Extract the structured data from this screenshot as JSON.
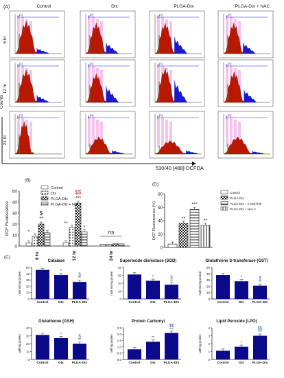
{
  "panel_labels": {
    "a": "(A)",
    "b": "(B)",
    "c": "(C)",
    "d": "(D)"
  },
  "flow": {
    "columns": [
      "Control",
      "Dtx",
      "PLGA-Dtx",
      "PLGA-Dtx + NAC"
    ],
    "rows": [
      "6 hr",
      "12 hr",
      "24 hr"
    ],
    "gate_label": "P2",
    "y_axis": "Counts",
    "x_axis": "530/40 [488]-DCFDA"
  },
  "chart_data": [
    {
      "type": "bar",
      "panel": "(B)",
      "categories": [
        "6 hr",
        "12 hr",
        "24 hr"
      ],
      "ylabel": "DCF Fluorescence",
      "ylim": [
        0,
        50
      ],
      "yticks": [
        "0",
        "10",
        "20",
        "30",
        "40",
        "50"
      ],
      "series": [
        {
          "name": "Control",
          "values": [
            3,
            3,
            1.5
          ]
        },
        {
          "name": "Dtx",
          "values": [
            9,
            17,
            1.5
          ]
        },
        {
          "name": "PLGA-Dtx",
          "values": [
            20,
            39,
            2
          ]
        },
        {
          "name": "PLGA-Dtx + NAC",
          "values": [
            12,
            13,
            2
          ]
        }
      ],
      "annotations": [
        "*",
        "**",
        "$",
        "**",
        "***",
        "$$",
        "*",
        "ns"
      ]
    },
    {
      "type": "bar",
      "panel": "(D)",
      "ylabel": "DCF Fluorescence (%)",
      "ylim": [
        0,
        80
      ],
      "yticks": [
        "0",
        "20",
        "40",
        "60",
        "80"
      ],
      "series": [
        {
          "name": "Control",
          "values": [
            5
          ]
        },
        {
          "name": "PLGA-Dtx",
          "values": [
            36
          ]
        },
        {
          "name": "PLGA-Dtx + z-vad-fmk",
          "values": [
            57
          ]
        },
        {
          "name": "PLGA-Dtx + Nec-1",
          "values": [
            33
          ]
        }
      ],
      "annotations": [
        "**",
        "***",
        "**"
      ]
    },
    {
      "type": "bar",
      "panel": "(C)",
      "title": "Catalase",
      "ylabel": "nM/min/mg protein",
      "categories": [
        "Control",
        "Dtx",
        "PLGA-Dtx"
      ],
      "values": [
        46,
        38,
        27
      ],
      "ylim": [
        0,
        50
      ],
      "yticks": [
        "0",
        "10",
        "20",
        "30",
        "40",
        "50"
      ],
      "annotations": [
        "",
        "*",
        "**"
      ],
      "sig2": "$"
    },
    {
      "type": "bar",
      "panel": "(C)",
      "title": "Superoxide dismutase (SOD)",
      "ylabel": "nM/min/mg protein",
      "categories": [
        "Control",
        "Dtx",
        "PLGA-Dtx"
      ],
      "values": [
        31,
        23,
        18
      ],
      "ylim": [
        0,
        40
      ],
      "yticks": [
        "0",
        "10",
        "20",
        "30",
        "40"
      ],
      "annotations": [
        "",
        "*",
        "**"
      ],
      "sig2": "$"
    },
    {
      "type": "bar",
      "panel": "(C)",
      "title": "Glutathione S-transferase (GST)",
      "ylabel": "nM/min/mg protein",
      "categories": [
        "Control",
        "Dtx",
        "PLGA-Dtx"
      ],
      "values": [
        38,
        28,
        21
      ],
      "ylim": [
        0,
        50
      ],
      "yticks": [
        "0",
        "10",
        "20",
        "30",
        "40",
        "50"
      ],
      "annotations": [
        "",
        "*",
        "**"
      ],
      "sig2": "$"
    },
    {
      "type": "bar",
      "panel": "(C)",
      "title": "Glutathione (GSH)",
      "ylabel": "µM/mg protein",
      "categories": [
        "Control",
        "Dtx",
        "PLGA-Dtx"
      ],
      "values": [
        31,
        27,
        20
      ],
      "ylim": [
        0,
        40
      ],
      "yticks": [
        "0",
        "10",
        "20",
        "30",
        "40"
      ],
      "annotations": [
        "",
        "*",
        "**"
      ],
      "sig2": "$"
    },
    {
      "type": "bar",
      "panel": "(C)",
      "title": "Protein Carbonyl",
      "ylabel": "nM/mg protein",
      "categories": [
        "Control",
        "Dtx",
        "PLGA-Dtx"
      ],
      "values": [
        0.8,
        1.4,
        2.1
      ],
      "ylim": [
        0,
        2.5
      ],
      "yticks": [
        "0.0",
        "0.5",
        "1.0",
        "1.5",
        "2.0",
        "2.5"
      ],
      "annotations": [
        "",
        "**",
        "***"
      ],
      "sig2": "$$"
    },
    {
      "type": "bar",
      "panel": "(C)",
      "title": "Lipid Peroxide (LPO)",
      "ylabel": "µM/mg protein",
      "categories": [
        "Control",
        "Dtx",
        "PLGA-Dtx"
      ],
      "values": [
        1.1,
        1.6,
        3.0
      ],
      "ylim": [
        0,
        4
      ],
      "yticks": [
        "0",
        "1",
        "2",
        "3",
        "4"
      ],
      "annotations": [
        "",
        "*",
        "***"
      ],
      "sig2": "$$"
    }
  ],
  "colors": {
    "histo_fill": "#b81800",
    "histo_green": "#1f8a1f",
    "histo_blue": "#1a1acc",
    "histo_pink": "#ee88dd",
    "bar_navy": "#0a0a8a",
    "sig_blue": "#2244cc"
  }
}
